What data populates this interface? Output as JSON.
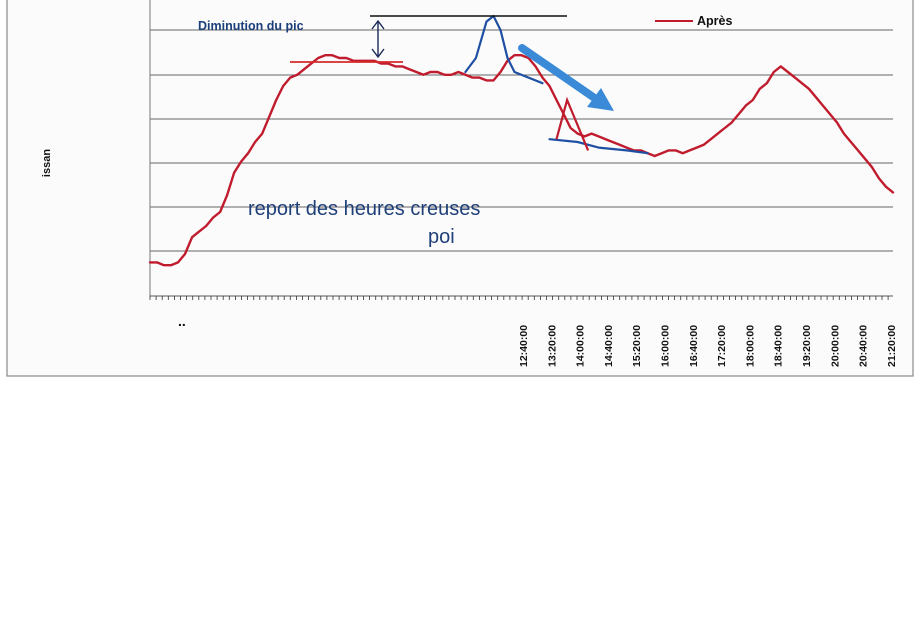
{
  "chart_data": {
    "type": "line",
    "title": "",
    "xlabel": "",
    "ylabel": "issan",
    "x_tick_labels": [
      "12:40:00",
      "13:20:00",
      "14:00:00",
      "14:40:00",
      "15:20:00",
      "16:00:00",
      "16:40:00",
      "17:20:00",
      "18:00:00",
      "18:40:00",
      "19:20:00",
      "20:00:00",
      "20:40:00",
      "21:20:00"
    ],
    "xlim_minutes": [
      240,
      1300
    ],
    "ylim": [
      0,
      100
    ],
    "grid": true,
    "legend_placement": "top-right",
    "legend_visible": [
      "Après"
    ],
    "colors": {
      "apres": "#c01c2e",
      "avant": "#1f4fa3",
      "annotation": "#1a3f7a",
      "grid": "#666666"
    },
    "series": [
      {
        "name": "Après",
        "color": "#c01c2e",
        "x": [
          240,
          250,
          260,
          270,
          280,
          290,
          300,
          310,
          320,
          330,
          340,
          350,
          360,
          370,
          380,
          390,
          400,
          410,
          420,
          430,
          440,
          450,
          460,
          470,
          480,
          490,
          500,
          510,
          520,
          530,
          540,
          550,
          560,
          570,
          580,
          590,
          600,
          610,
          620,
          630,
          640,
          650,
          660,
          670,
          680,
          690,
          700,
          710,
          720,
          730,
          740,
          750,
          760,
          770,
          780,
          790,
          800,
          810,
          820,
          830,
          840,
          850,
          860,
          870,
          880,
          890,
          900,
          910,
          920,
          930,
          940,
          950,
          960,
          970,
          980,
          990,
          1000,
          1010,
          1020,
          1030,
          1040,
          1050,
          1060,
          1070,
          1080,
          1090,
          1100,
          1110,
          1120,
          1130,
          1140,
          1150,
          1160,
          1170,
          1180,
          1190,
          1200,
          1210,
          1220,
          1230,
          1240,
          1250,
          1260,
          1270,
          1280,
          1290,
          1300
        ],
        "y": [
          12,
          12,
          11,
          11,
          12,
          15,
          21,
          23,
          25,
          28,
          30,
          36,
          44,
          48,
          51,
          55,
          58,
          64,
          70,
          75,
          78,
          79,
          81,
          83,
          85,
          86,
          86,
          85,
          85,
          84,
          84,
          84,
          84,
          83,
          83,
          82,
          82,
          81,
          80,
          79,
          80,
          80,
          79,
          79,
          80,
          79,
          78,
          78,
          77,
          77,
          80,
          84,
          86,
          86,
          85,
          82,
          78,
          75,
          70,
          65,
          60,
          58,
          57,
          58,
          57,
          56,
          55,
          54,
          53,
          52,
          52,
          51,
          50,
          51,
          52,
          52,
          51,
          52,
          53,
          54,
          56,
          58,
          60,
          62,
          65,
          68,
          70,
          74,
          76,
          80,
          82,
          80,
          78,
          76,
          74,
          71,
          68,
          65,
          62,
          58,
          55,
          52,
          49,
          46,
          42,
          39,
          37
        ]
      },
      {
        "name": "",
        "color": "#1f4fa3",
        "x": [
          690,
          705,
          720,
          730,
          740,
          750,
          760,
          780,
          800
        ],
        "y": [
          80,
          85,
          98,
          100,
          95,
          85,
          80,
          78,
          76
        ]
      },
      {
        "name": "",
        "color": "#1f4fa3",
        "x": [
          810,
          850,
          880,
          920,
          950
        ],
        "y": [
          56,
          55,
          53,
          52,
          51
        ]
      }
    ],
    "annotations": {
      "peak_decrease": "Diminution du pic",
      "off_peak_shift": "report des heures creuses",
      "fragment": "poi",
      "dots": ".."
    }
  }
}
